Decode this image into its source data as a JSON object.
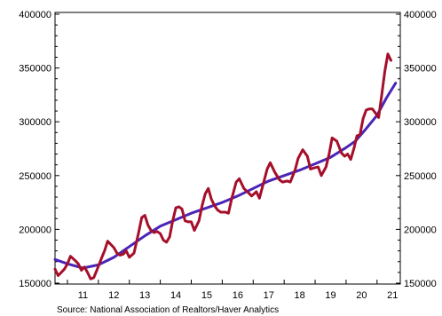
{
  "source_text": "Source:  National Association of Realtors/Haver Analytics",
  "colors": {
    "series_actual": "#a50f2a",
    "series_trend": "#4a25b8",
    "axis": "#000000",
    "background": "#ffffff"
  },
  "chart_data": {
    "type": "line",
    "title": "",
    "xlabel": "",
    "ylabel": "",
    "x_tick_labels": [
      "11",
      "12",
      "13",
      "14",
      "15",
      "16",
      "17",
      "18",
      "19",
      "20",
      "21"
    ],
    "y_tick_labels": [
      "150000",
      "200000",
      "250000",
      "300000",
      "350000",
      "400000"
    ],
    "ylim": [
      150000,
      400000
    ],
    "xlim": [
      2010.6,
      2021.75
    ],
    "grid": false,
    "legend": "none",
    "dual_y_axis": true,
    "series": [
      {
        "key": "actual",
        "x": [
          2010.6,
          2010.7,
          2010.8,
          2010.9,
          2011.0,
          2011.1,
          2011.25,
          2011.35,
          2011.45,
          2011.55,
          2011.65,
          2011.75,
          2011.85,
          2011.95,
          2012.1,
          2012.2,
          2012.3,
          2012.4,
          2012.5,
          2012.6,
          2012.7,
          2012.8,
          2012.9,
          2013.0,
          2013.15,
          2013.3,
          2013.4,
          2013.5,
          2013.6,
          2013.7,
          2013.8,
          2013.9,
          2014.0,
          2014.1,
          2014.2,
          2014.3,
          2014.4,
          2014.5,
          2014.6,
          2014.7,
          2014.8,
          2014.9,
          2015.0,
          2015.1,
          2015.25,
          2015.35,
          2015.45,
          2015.55,
          2015.65,
          2015.75,
          2015.85,
          2015.95,
          2016.1,
          2016.2,
          2016.3,
          2016.45,
          2016.55,
          2016.7,
          2016.85,
          2016.95,
          2017.1,
          2017.2,
          2017.35,
          2017.45,
          2017.55,
          2017.7,
          2017.85,
          2017.95,
          2018.1,
          2018.2,
          2018.35,
          2018.45,
          2018.6,
          2018.75,
          2018.85,
          2018.95,
          2019.1,
          2019.2,
          2019.35,
          2019.45,
          2019.55,
          2019.7,
          2019.85,
          2019.95,
          2020.05,
          2020.15,
          2020.25,
          2020.35,
          2020.45,
          2020.55,
          2020.65,
          2020.75,
          2020.85,
          2020.95,
          2021.05,
          2021.15,
          2021.25,
          2021.35,
          2021.45
        ],
        "values": [
          163000,
          157000,
          160000,
          163000,
          168000,
          175000,
          171000,
          168000,
          162000,
          165000,
          160000,
          154000,
          155000,
          162000,
          173000,
          180000,
          189000,
          186000,
          183000,
          178000,
          176000,
          177000,
          180000,
          174000,
          178000,
          197000,
          211000,
          213000,
          204000,
          199000,
          197000,
          198000,
          196000,
          190000,
          188000,
          193000,
          208000,
          220000,
          221000,
          219000,
          208000,
          207000,
          207000,
          199000,
          208000,
          222000,
          233000,
          238000,
          228000,
          222000,
          218000,
          216000,
          216000,
          215000,
          228000,
          244000,
          247000,
          238000,
          234000,
          231000,
          235000,
          229000,
          245000,
          256000,
          262000,
          253000,
          246000,
          244000,
          245000,
          244000,
          255000,
          266000,
          274000,
          268000,
          256000,
          257000,
          258000,
          250000,
          258000,
          270000,
          285000,
          282000,
          271000,
          268000,
          270000,
          265000,
          275000,
          287000,
          288000,
          303000,
          311000,
          312000,
          312000,
          308000,
          304000,
          325000,
          347000,
          363000,
          357000
        ]
      },
      {
        "key": "trend",
        "x": [
          2010.6,
          2011.0,
          2011.5,
          2012.0,
          2012.5,
          2013.0,
          2013.5,
          2014.0,
          2014.5,
          2015.0,
          2015.5,
          2016.0,
          2016.5,
          2017.0,
          2017.5,
          2018.0,
          2018.5,
          2019.0,
          2019.5,
          2020.0,
          2020.3,
          2020.6,
          2021.0,
          2021.3,
          2021.6
        ],
        "values": [
          172000,
          168000,
          164000,
          167000,
          174000,
          184000,
          194000,
          203000,
          209000,
          215000,
          220000,
          225000,
          231000,
          238000,
          245000,
          250000,
          255000,
          261000,
          267000,
          276000,
          282000,
          292000,
          306000,
          322000,
          336000
        ]
      }
    ]
  }
}
